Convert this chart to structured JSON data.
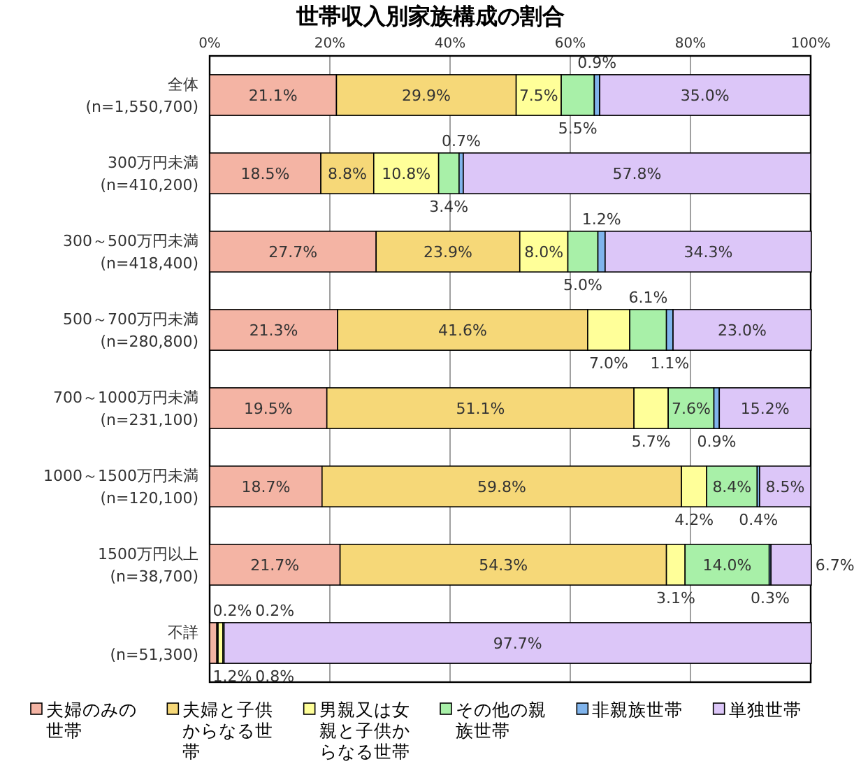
{
  "chart_data": {
    "type": "bar",
    "orientation": "horizontal",
    "stacked": true,
    "title": "世帯収入別家族構成の割合",
    "categories": [
      "全体\n(n=1,550,700)",
      "300万円未満\n(n=410,200)",
      "300～500万円未満\n(n=418,400)",
      "500～700万円未満\n(n=280,800)",
      "700～1000万円未満\n(n=231,100)",
      "1000～1500万円未満\n(n=120,100)",
      "1500万円以上\n(n=38,700)",
      "不詳\n(n=51,300)"
    ],
    "series": [
      {
        "name": "夫婦のみの世帯",
        "color": "#f4b4a4",
        "values": [
          21.1,
          18.5,
          27.7,
          21.3,
          19.5,
          18.7,
          21.7,
          1.2
        ],
        "value_labels": [
          "21.1%",
          "18.5%",
          "27.7%",
          "21.3%",
          "19.5%",
          "18.7%",
          "21.7%",
          "1.2%"
        ]
      },
      {
        "name": "夫婦と子供からなる世帯",
        "color": "#f6d878",
        "values": [
          29.9,
          8.8,
          23.9,
          41.6,
          51.1,
          59.8,
          54.3,
          0.2
        ],
        "value_labels": [
          "29.9%",
          "8.8%",
          "23.9%",
          "41.6%",
          "51.1%",
          "59.8%",
          "54.3%",
          "0.2%"
        ]
      },
      {
        "name": "男親又は女親と子供からなる世帯",
        "color": "#ffff99",
        "values": [
          7.5,
          10.8,
          8.0,
          7.0,
          5.7,
          4.2,
          3.1,
          0.8
        ],
        "value_labels": [
          "7.5%",
          "10.8%",
          "8.0%",
          "7.0%",
          "5.7%",
          "4.2%",
          "3.1%",
          "0.8%"
        ]
      },
      {
        "name": "その他の親族世帯",
        "color": "#a8f0a8",
        "values": [
          5.5,
          3.4,
          5.0,
          6.1,
          7.6,
          8.4,
          14.0,
          0.2
        ],
        "value_labels": [
          "5.5%",
          "3.4%",
          "5.0%",
          "6.1%",
          "7.6%",
          "8.4%",
          "14.0%",
          "0.2%"
        ]
      },
      {
        "name": "非親族世帯",
        "color": "#80b4ec",
        "values": [
          0.9,
          0.7,
          1.2,
          1.1,
          0.9,
          0.4,
          0.3,
          0.0
        ],
        "value_labels": [
          "0.9%",
          "0.7%",
          "1.2%",
          "1.1%",
          "0.9%",
          "0.4%",
          "0.3%",
          null
        ]
      },
      {
        "name": "単独世帯",
        "color": "#dcc6f8",
        "values": [
          35.0,
          57.8,
          34.3,
          23.0,
          15.2,
          8.5,
          6.7,
          97.7
        ],
        "value_labels": [
          "35.0%",
          "57.8%",
          "34.3%",
          "23.0%",
          "15.2%",
          "8.5%",
          "6.7%",
          "97.7%"
        ]
      }
    ],
    "xlim": [
      0,
      100
    ],
    "xticks": [
      {
        "value": 0,
        "label": "0%"
      },
      {
        "value": 20,
        "label": "20%"
      },
      {
        "value": 40,
        "label": "40%"
      },
      {
        "value": 60,
        "label": "60%"
      },
      {
        "value": 80,
        "label": "80%"
      },
      {
        "value": 100,
        "label": "100%"
      }
    ],
    "grid": "x",
    "legend": "bottom"
  }
}
